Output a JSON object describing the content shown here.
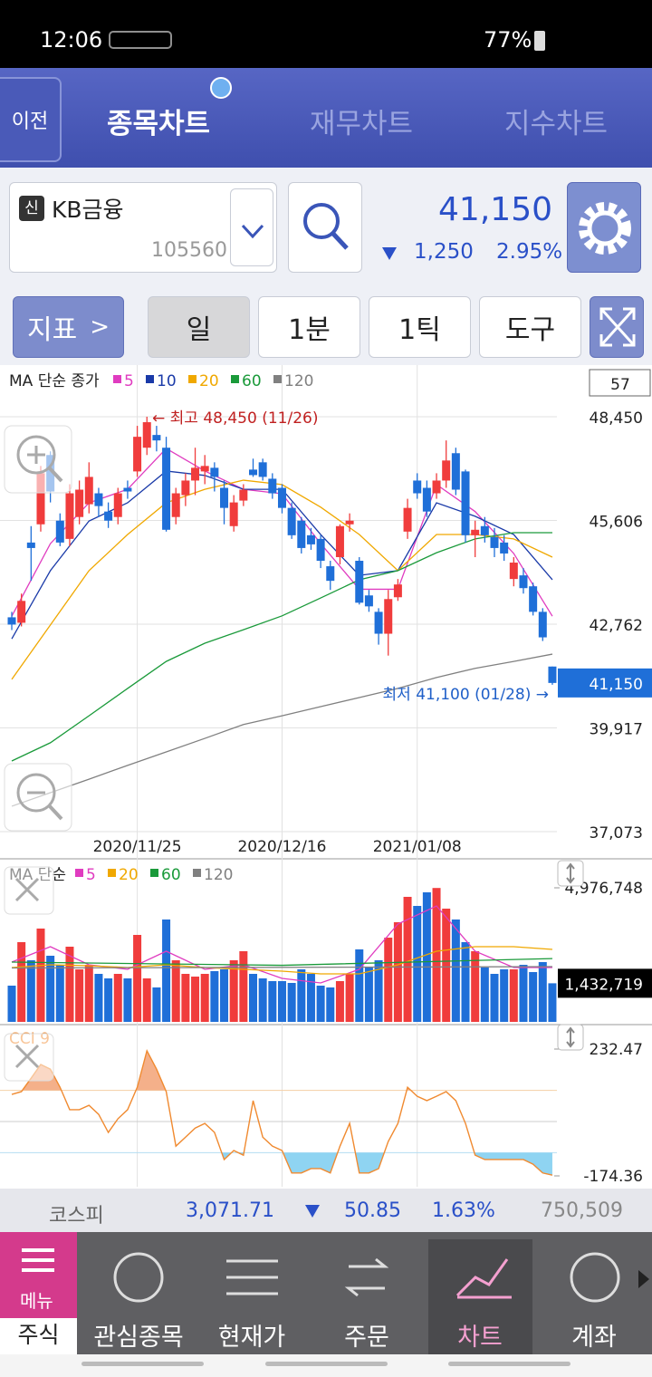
{
  "status_bar": {
    "time": "12:06",
    "battery": "77%"
  },
  "header": {
    "back": "이전",
    "tabs": [
      "종목차트",
      "재무차트",
      "지수차트"
    ]
  },
  "stock": {
    "badge": "신",
    "name": "KB금융",
    "code": "105560",
    "price": "41,150",
    "change": "1,250",
    "change_rate": "2.95%"
  },
  "toolbar": {
    "indicator": "지표",
    "buttons": [
      "일",
      "1분",
      "1틱",
      "도구"
    ]
  },
  "price_chart": {
    "type": "candlestick",
    "legend_title": "MA 단순 종가",
    "counter": "57",
    "categories": [
      null,
      null,
      null,
      null,
      null,
      null,
      null,
      null,
      null,
      null,
      null,
      null,
      null,
      "2020/11/25",
      null,
      null,
      null,
      null,
      null,
      null,
      null,
      null,
      null,
      null,
      null,
      null,
      null,
      null,
      "2020/12/16",
      null,
      null,
      null,
      null,
      null,
      null,
      null,
      null,
      null,
      null,
      null,
      null,
      null,
      "2021/01/08",
      null,
      null,
      null,
      null,
      null,
      null,
      null,
      null,
      null,
      null,
      null,
      null,
      null,
      null
    ],
    "candles": [
      {
        "o": 42950,
        "h": 43100,
        "l": 42600,
        "c": 42750
      },
      {
        "o": 42800,
        "h": 43600,
        "l": 42700,
        "c": 43400
      },
      {
        "o": 45000,
        "h": 45450,
        "l": 43950,
        "c": 44850
      },
      {
        "o": 45500,
        "h": 47100,
        "l": 45300,
        "c": 46900
      },
      {
        "o": 47400,
        "h": 47500,
        "l": 46100,
        "c": 46400
      },
      {
        "o": 45600,
        "h": 45800,
        "l": 44900,
        "c": 45000
      },
      {
        "o": 45100,
        "h": 46600,
        "l": 44900,
        "c": 46350
      },
      {
        "o": 45700,
        "h": 46700,
        "l": 45500,
        "c": 46450
      },
      {
        "o": 46050,
        "h": 47200,
        "l": 45800,
        "c": 46800
      },
      {
        "o": 46350,
        "h": 46500,
        "l": 45700,
        "c": 46000
      },
      {
        "o": 45850,
        "h": 46100,
        "l": 45400,
        "c": 45600
      },
      {
        "o": 45700,
        "h": 46500,
        "l": 45500,
        "c": 46350
      },
      {
        "o": 46500,
        "h": 46700,
        "l": 46200,
        "c": 46400
      },
      {
        "o": 46950,
        "h": 48200,
        "l": 46800,
        "c": 47900
      },
      {
        "o": 47600,
        "h": 48450,
        "l": 47400,
        "c": 48300
      },
      {
        "o": 47950,
        "h": 48200,
        "l": 47500,
        "c": 47800
      },
      {
        "o": 47600,
        "h": 47900,
        "l": 45300,
        "c": 45350
      },
      {
        "o": 45700,
        "h": 46500,
        "l": 45500,
        "c": 46350
      },
      {
        "o": 46300,
        "h": 46900,
        "l": 46000,
        "c": 46700
      },
      {
        "o": 46700,
        "h": 47600,
        "l": 46300,
        "c": 47050
      },
      {
        "o": 46950,
        "h": 47400,
        "l": 46600,
        "c": 47100
      },
      {
        "o": 47050,
        "h": 47200,
        "l": 46400,
        "c": 46800
      },
      {
        "o": 46500,
        "h": 46700,
        "l": 45500,
        "c": 45950
      },
      {
        "o": 45450,
        "h": 46300,
        "l": 45300,
        "c": 46100
      },
      {
        "o": 46150,
        "h": 46600,
        "l": 46000,
        "c": 46450
      },
      {
        "o": 47000,
        "h": 47300,
        "l": 46800,
        "c": 46850
      },
      {
        "o": 47200,
        "h": 47300,
        "l": 46700,
        "c": 46800
      },
      {
        "o": 46750,
        "h": 46900,
        "l": 46200,
        "c": 46350
      },
      {
        "o": 46500,
        "h": 46600,
        "l": 45800,
        "c": 45950
      },
      {
        "o": 45950,
        "h": 46100,
        "l": 45100,
        "c": 45200
      },
      {
        "o": 45600,
        "h": 45700,
        "l": 44700,
        "c": 44850
      },
      {
        "o": 45200,
        "h": 45400,
        "l": 44800,
        "c": 44950
      },
      {
        "o": 45100,
        "h": 45200,
        "l": 44300,
        "c": 44500
      },
      {
        "o": 44350,
        "h": 44500,
        "l": 43700,
        "c": 43950
      },
      {
        "o": 44600,
        "h": 45500,
        "l": 44400,
        "c": 45450
      },
      {
        "o": 45500,
        "h": 45800,
        "l": 45300,
        "c": 45600
      },
      {
        "o": 44500,
        "h": 44600,
        "l": 43300,
        "c": 43350
      },
      {
        "o": 43550,
        "h": 43700,
        "l": 43100,
        "c": 43250
      },
      {
        "o": 43100,
        "h": 43200,
        "l": 42200,
        "c": 42500
      },
      {
        "o": 42500,
        "h": 43700,
        "l": 41900,
        "c": 43450
      },
      {
        "o": 43500,
        "h": 44000,
        "l": 43400,
        "c": 43850
      },
      {
        "o": 45300,
        "h": 46200,
        "l": 45100,
        "c": 45950
      },
      {
        "o": 46700,
        "h": 46900,
        "l": 46200,
        "c": 46350
      },
      {
        "o": 46500,
        "h": 46700,
        "l": 45700,
        "c": 45850
      },
      {
        "o": 46350,
        "h": 46900,
        "l": 46200,
        "c": 46700
      },
      {
        "o": 46700,
        "h": 47800,
        "l": 46500,
        "c": 47250
      },
      {
        "o": 47450,
        "h": 47600,
        "l": 46300,
        "c": 46450
      },
      {
        "o": 46950,
        "h": 47000,
        "l": 45000,
        "c": 45200
      },
      {
        "o": 45200,
        "h": 45600,
        "l": 44600,
        "c": 45350
      },
      {
        "o": 45450,
        "h": 45700,
        "l": 45000,
        "c": 45200
      },
      {
        "o": 45150,
        "h": 45400,
        "l": 44600,
        "c": 44850
      },
      {
        "o": 45000,
        "h": 45200,
        "l": 44500,
        "c": 44700
      },
      {
        "o": 44000,
        "h": 44600,
        "l": 43800,
        "c": 44450
      },
      {
        "o": 44100,
        "h": 44300,
        "l": 43600,
        "c": 43750
      },
      {
        "o": 43800,
        "h": 43900,
        "l": 43000,
        "c": 43100
      },
      {
        "o": 43100,
        "h": 43200,
        "l": 42300,
        "c": 42400
      },
      {
        "o": 41600,
        "h": 41600,
        "l": 41100,
        "c": 41150
      }
    ],
    "up_color": "#f03c3c",
    "down_color": "#1f6fd8",
    "ylim": [
      37073,
      48450
    ],
    "yticks": [
      {
        "value": 48450,
        "label": "48,450"
      },
      {
        "value": 45606,
        "label": "45,606"
      },
      {
        "value": 42762,
        "label": "42,762"
      },
      {
        "value": 39917,
        "label": "39,917"
      },
      {
        "value": 37073,
        "label": "37,073"
      }
    ],
    "series": [
      {
        "name": "5",
        "color": "#e03cc0",
        "index": [
          0,
          4,
          8,
          12,
          16,
          20,
          24,
          28,
          32,
          36,
          40,
          44,
          48,
          52,
          56
        ],
        "values": [
          42980,
          44970,
          46090,
          46460,
          47580,
          46960,
          46460,
          46340,
          44970,
          43720,
          43720,
          46590,
          45850,
          44700,
          42980
        ]
      },
      {
        "name": "10",
        "color": "#1a3aa8",
        "index": [
          0,
          4,
          8,
          12,
          16,
          20,
          24,
          28,
          32,
          36,
          40,
          44,
          48,
          52,
          56
        ],
        "values": [
          42360,
          44230,
          45590,
          46090,
          46960,
          46840,
          46460,
          46460,
          45220,
          44100,
          44230,
          46090,
          45720,
          45220,
          43980
        ]
      },
      {
        "name": "20",
        "color": "#f0a800",
        "index": [
          0,
          4,
          8,
          12,
          16,
          20,
          24,
          28,
          32,
          36,
          40,
          44,
          48,
          52,
          56
        ],
        "values": [
          41250,
          42740,
          44230,
          45220,
          46090,
          46460,
          46710,
          46590,
          45970,
          45220,
          44230,
          45220,
          45220,
          45100,
          44600
        ]
      },
      {
        "name": "60",
        "color": "#1a9a3a",
        "index": [
          0,
          4,
          8,
          12,
          16,
          20,
          24,
          28,
          32,
          36,
          40,
          44,
          48,
          52,
          56
        ],
        "values": [
          39010,
          39510,
          40250,
          41000,
          41740,
          42240,
          42610,
          42990,
          43480,
          43980,
          44230,
          44720,
          45100,
          45270,
          45270
        ]
      },
      {
        "name": "120",
        "color": "#808080",
        "index": [
          0,
          4,
          8,
          12,
          16,
          20,
          24,
          28,
          32,
          36,
          40,
          44,
          48,
          52,
          56
        ],
        "values": [
          37770,
          38140,
          38510,
          38890,
          39260,
          39630,
          40010,
          40250,
          40500,
          40750,
          41000,
          41300,
          41550,
          41740,
          41940
        ]
      }
    ],
    "high_label": "← 최고 48,450 (11/26)",
    "low_label": "최저 41,100 (01/28) →",
    "last_price": {
      "value": 41150,
      "label": "41,150"
    }
  },
  "volume_chart": {
    "type": "bar",
    "legend_title": "MA 단순",
    "ylim": [
      0,
      4976748
    ],
    "yticks": [
      {
        "value": 4976748,
        "label": "4,976,748"
      }
    ],
    "values": [
      1345000,
      2959000,
      2287000,
      3464000,
      2455000,
      2118000,
      2791000,
      1950000,
      2118000,
      1782000,
      1614000,
      1782000,
      1614000,
      3228000,
      1614000,
      1278000,
      3800000,
      2287000,
      1782000,
      1681000,
      1782000,
      1883000,
      1950000,
      2287000,
      2623000,
      1782000,
      1614000,
      1513000,
      1513000,
      1446000,
      1950000,
      1782000,
      1345000,
      1278000,
      1513000,
      1782000,
      2690000,
      2018000,
      2287000,
      3127000,
      3699000,
      4641000,
      4304000,
      4809000,
      4970000,
      4203000,
      3800000,
      2959000,
      2623000,
      2018000,
      1782000,
      1950000,
      1950000,
      2118000,
      1849000,
      2219000,
      1432719
    ],
    "last_label": "1,432,719",
    "series": [
      {
        "name": "5",
        "color": "#e03cc0",
        "index": [
          0,
          4,
          8,
          12,
          16,
          20,
          24,
          28,
          32,
          36,
          40,
          44,
          48,
          52,
          56
        ],
        "values": [
          2219000,
          2791000,
          2118000,
          1950000,
          2623000,
          1950000,
          2118000,
          1614000,
          1446000,
          1950000,
          3632000,
          4304000,
          2623000,
          2018000,
          2018000
        ]
      },
      {
        "name": "20",
        "color": "#f0a800",
        "index": [
          0,
          4,
          8,
          12,
          16,
          20,
          24,
          28,
          32,
          36,
          40,
          44,
          48,
          52,
          56
        ],
        "values": [
          2018000,
          2118000,
          2085000,
          2018000,
          2118000,
          2018000,
          1950000,
          1883000,
          1782000,
          1782000,
          2118000,
          2623000,
          2791000,
          2791000,
          2690000
        ]
      },
      {
        "name": "60",
        "color": "#1a9a3a",
        "index": [
          0,
          28,
          56
        ],
        "values": [
          2219000,
          2100000,
          2350000
        ]
      },
      {
        "name": "120",
        "color": "#808080",
        "index": [
          0,
          56
        ],
        "values": [
          2000000,
          2050000
        ]
      }
    ]
  },
  "cci_chart": {
    "type": "line",
    "title": "CCI 9",
    "color": "#f08a30",
    "ylim": [
      -174.36,
      232.47
    ],
    "yticks": [
      232.47,
      -174.36
    ],
    "levels": [
      100,
      0,
      -100
    ],
    "values": [
      87,
      96,
      139,
      183,
      168,
      110,
      38,
      38,
      52,
      23,
      -35,
      9,
      38,
      110,
      227,
      168,
      96,
      -79,
      -50,
      -21,
      -6,
      -35,
      -122,
      -93,
      -108,
      67,
      -50,
      -79,
      -93,
      -165,
      -165,
      -151,
      -151,
      -165,
      -79,
      -6,
      -165,
      -165,
      -151,
      -64,
      -6,
      110,
      81,
      67,
      81,
      96,
      67,
      -6,
      -108,
      -122,
      -122,
      -122,
      -122,
      -122,
      -137,
      -165,
      -172
    ]
  },
  "index_bar": {
    "name": "코스피",
    "value": "3,071.71",
    "change": "50.85",
    "rate": "1.63%",
    "volume": "750,509"
  },
  "nav": {
    "menu": "메뉴",
    "market": "주식",
    "items": [
      "관심종목",
      "현재가",
      "주문",
      "차트",
      "계좌"
    ]
  }
}
